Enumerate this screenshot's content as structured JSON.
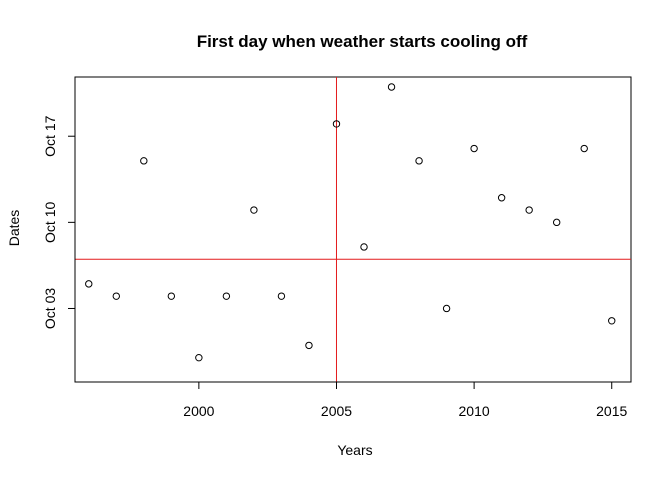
{
  "chart_data": {
    "type": "scatter",
    "title": "First day when weather starts cooling off",
    "xlabel": "Years",
    "ylabel": "Dates",
    "xlim": [
      1995.5,
      2015.7
    ],
    "ylim": [
      "2000-09-28",
      "2000-10-21"
    ],
    "x_ticks": [
      {
        "value": 2000,
        "label": "2000"
      },
      {
        "value": 2005,
        "label": "2005"
      },
      {
        "value": 2010,
        "label": "2010"
      },
      {
        "value": 2015,
        "label": "2015"
      }
    ],
    "y_ticks": [
      {
        "value": "2000-10-03",
        "label": "Oct 03"
      },
      {
        "value": "2000-10-10",
        "label": "Oct 10"
      },
      {
        "value": "2000-10-17",
        "label": "Oct 17"
      }
    ],
    "grid": false,
    "legend": "none",
    "points": [
      {
        "x": 1996,
        "y": "2000-10-05"
      },
      {
        "x": 1997,
        "y": "2000-10-04"
      },
      {
        "x": 1998,
        "y": "2000-10-15"
      },
      {
        "x": 1999,
        "y": "2000-10-04"
      },
      {
        "x": 2000,
        "y": "2000-09-29"
      },
      {
        "x": 2001,
        "y": "2000-10-04"
      },
      {
        "x": 2002,
        "y": "2000-10-11"
      },
      {
        "x": 2003,
        "y": "2000-10-04"
      },
      {
        "x": 2004,
        "y": "2000-09-30"
      },
      {
        "x": 2005,
        "y": "2000-10-18"
      },
      {
        "x": 2006,
        "y": "2000-10-08"
      },
      {
        "x": 2007,
        "y": "2000-10-21"
      },
      {
        "x": 2008,
        "y": "2000-10-15"
      },
      {
        "x": 2009,
        "y": "2000-10-03"
      },
      {
        "x": 2010,
        "y": "2000-10-16"
      },
      {
        "x": 2011,
        "y": "2000-10-12"
      },
      {
        "x": 2012,
        "y": "2000-10-11"
      },
      {
        "x": 2013,
        "y": "2000-10-10"
      },
      {
        "x": 2014,
        "y": "2000-10-16"
      },
      {
        "x": 2015,
        "y": "2000-10-02"
      }
    ],
    "reference_lines": [
      {
        "orientation": "vertical",
        "value": 2005,
        "color": "#e41a1c"
      },
      {
        "orientation": "horizontal",
        "value": "2000-10-07",
        "color": "#e41a1c"
      }
    ],
    "marker": "open-circle",
    "point_color": "#000000"
  }
}
